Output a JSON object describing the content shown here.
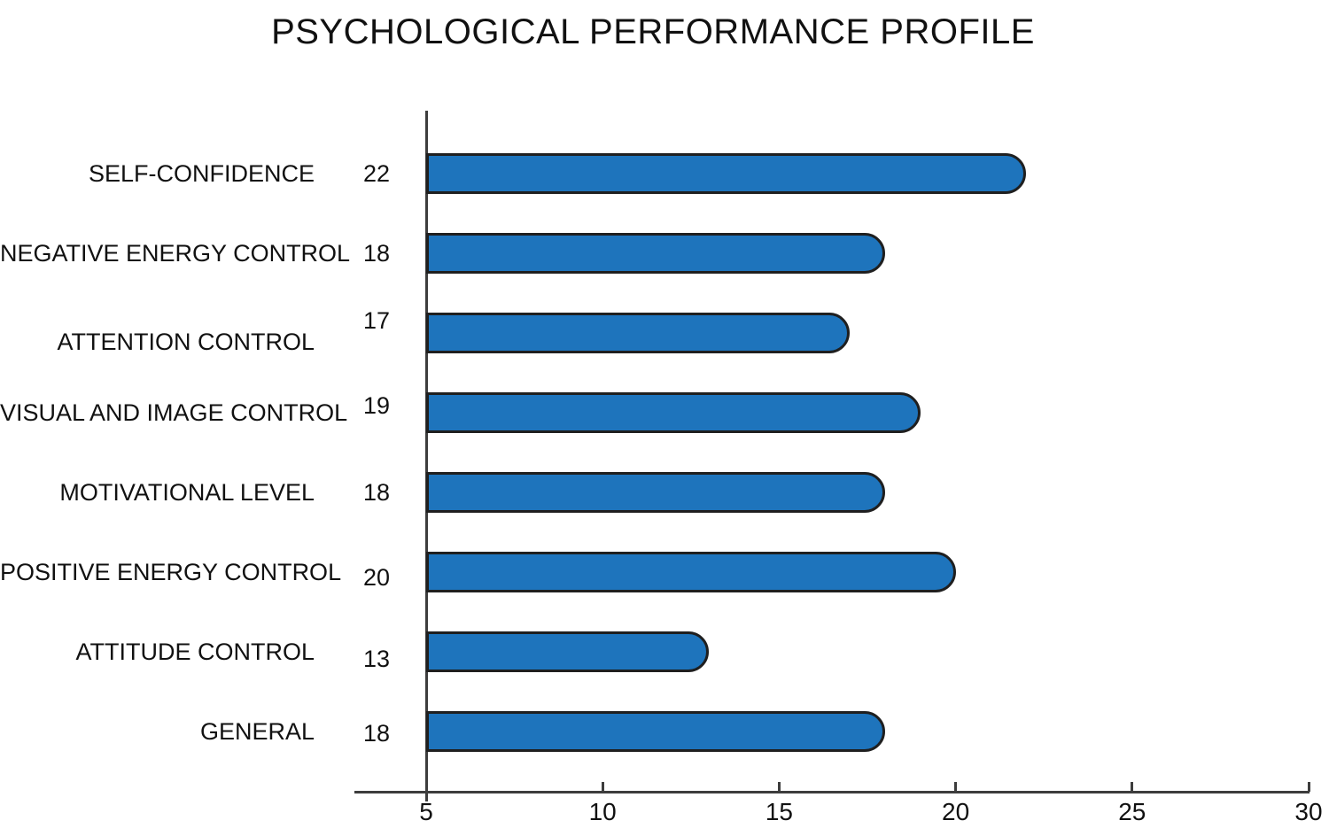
{
  "chart_data": {
    "type": "bar",
    "orientation": "horizontal",
    "title": "PSYCHOLOGICAL PERFORMANCE PROFILE",
    "categories": [
      "SELF-CONFIDENCE",
      "NEGATIVE ENERGY CONTROL",
      "ATTENTION CONTROL",
      "VISUAL AND IMAGE CONTROL",
      "MOTIVATIONAL LEVEL",
      "POSITIVE ENERGY CONTROL",
      "ATTITUDE CONTROL",
      "GENERAL"
    ],
    "values": [
      22,
      18,
      17,
      19,
      18,
      20,
      13,
      18
    ],
    "xlabel": "",
    "ylabel": "",
    "xlim": [
      5,
      30
    ],
    "xticks": [
      5,
      10,
      15,
      20,
      25,
      30
    ],
    "grid": false,
    "legend": false,
    "value_labels_shown": true,
    "colors": {
      "bar_fill": "#1E74BC",
      "bar_outline": "#1F1F1F",
      "axis": "#3D3D3D",
      "text": "#111111",
      "background": "#FFFFFF"
    }
  }
}
